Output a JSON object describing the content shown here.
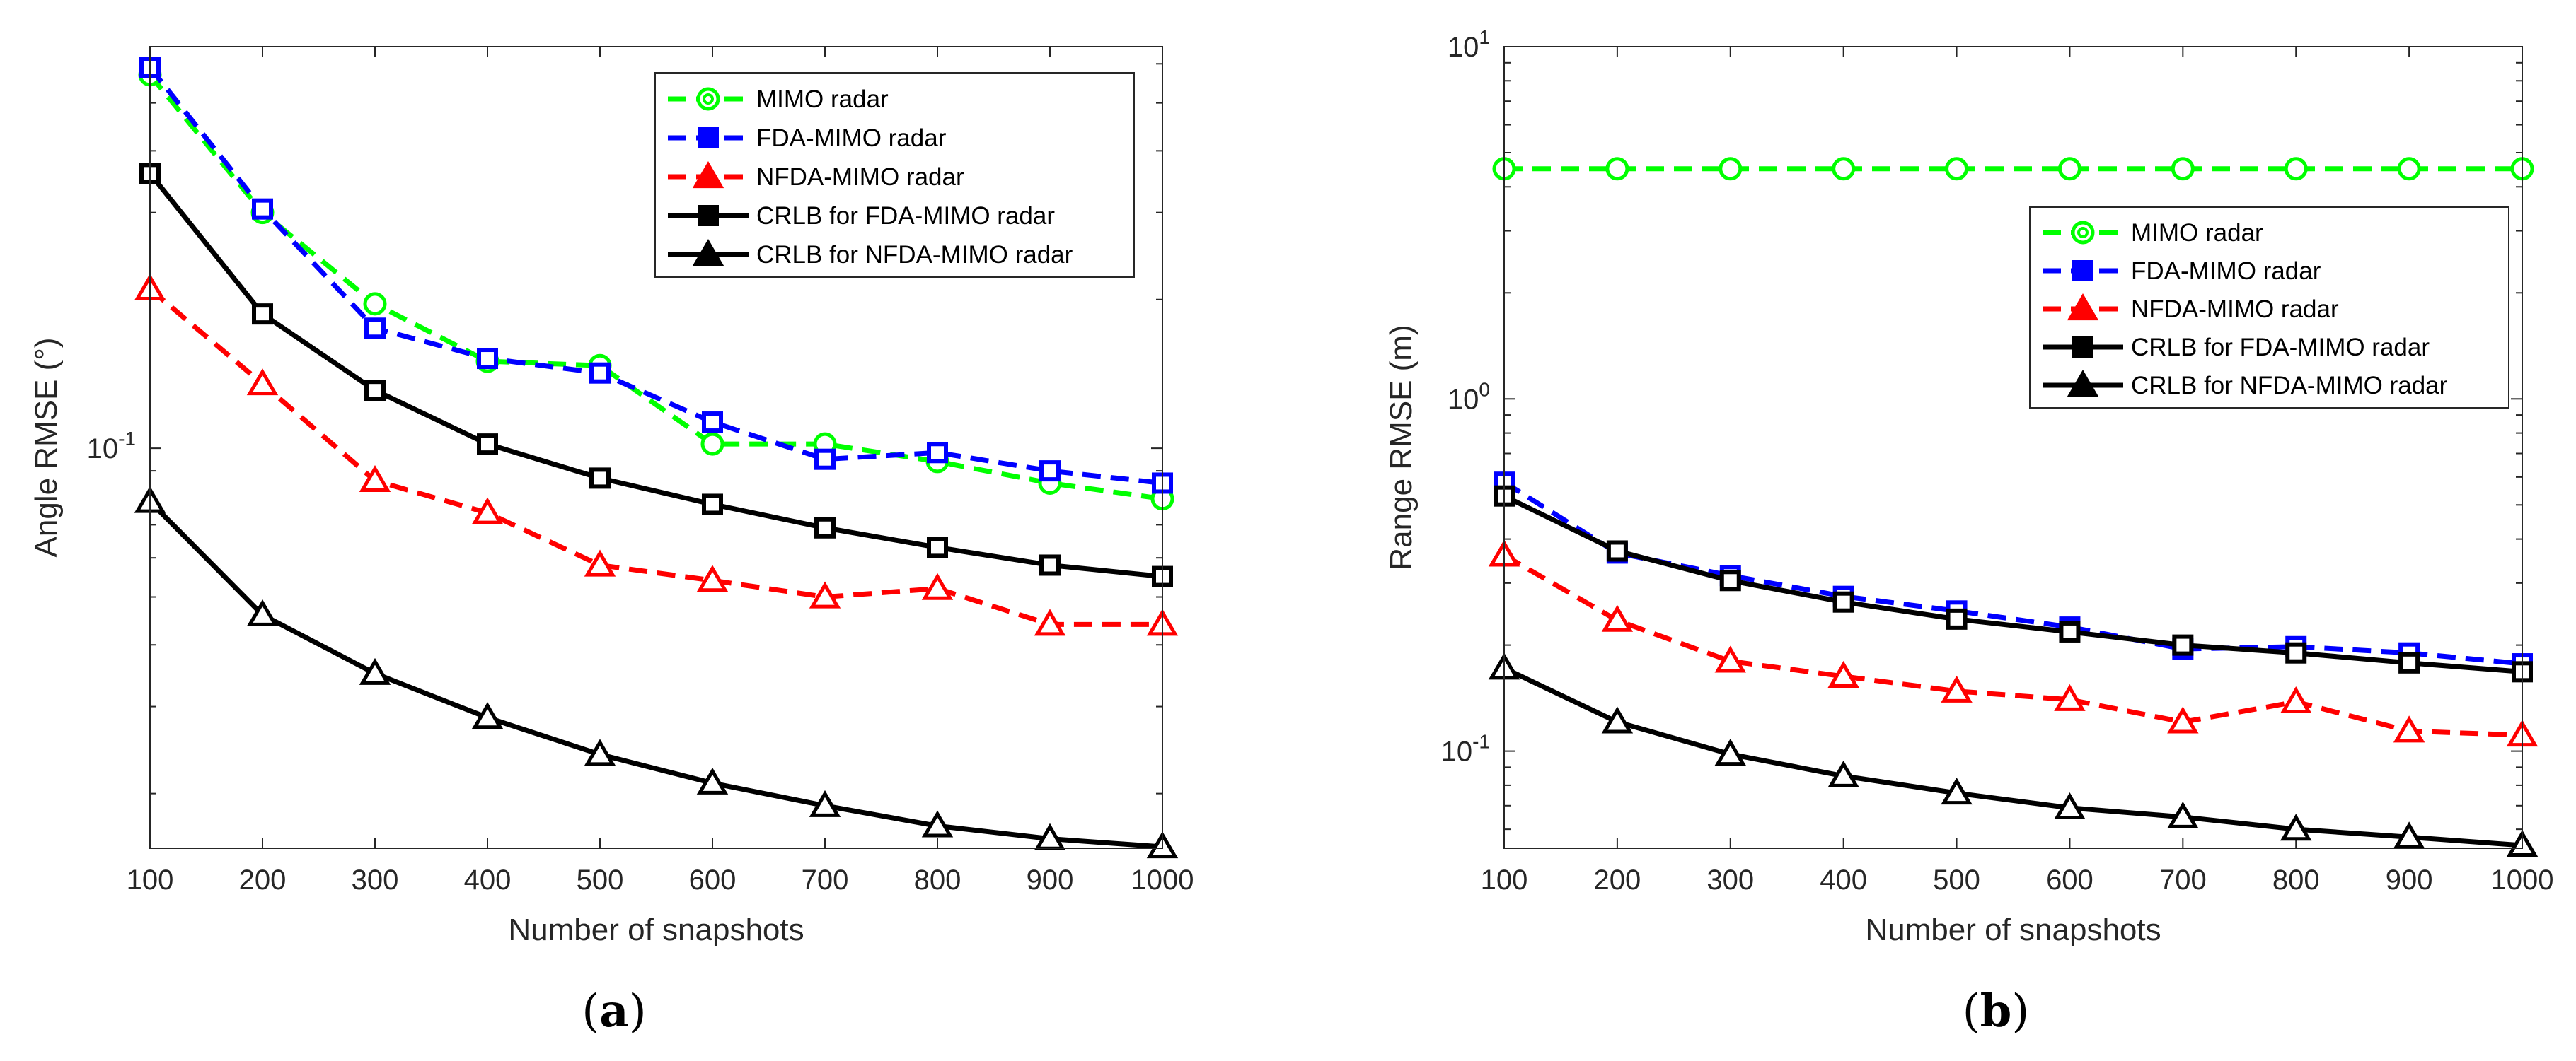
{
  "chart_data": [
    {
      "type": "line",
      "id": "a",
      "caption_open": "(",
      "caption_letter": "a",
      "caption_close": ")",
      "xlabel": "Number of snapshots",
      "ylabel": "Angle RMSE (°)",
      "yscale": "log",
      "ylim": [
        0.0155,
        0.65
      ],
      "xlim": [
        100,
        1000
      ],
      "x": [
        100,
        200,
        300,
        400,
        500,
        600,
        700,
        800,
        900,
        1000
      ],
      "xticks": [
        "100",
        "200",
        "300",
        "400",
        "500",
        "600",
        "700",
        "800",
        "900",
        "1000"
      ],
      "ytick_labels": [
        {
          "base": "10",
          "exp": "-1",
          "value": 0.1
        }
      ],
      "legend": "top-right",
      "series": [
        {
          "name": "MIMO radar",
          "color": "#00ff00",
          "dash": true,
          "marker": "circle",
          "values": [
            0.57,
            0.3,
            0.196,
            0.15,
            0.147,
            0.102,
            0.102,
            0.094,
            0.085,
            0.079
          ]
        },
        {
          "name": "FDA-MIMO radar",
          "color": "#0000ff",
          "dash": true,
          "marker": "square",
          "values": [
            0.59,
            0.305,
            0.175,
            0.152,
            0.142,
            0.113,
            0.095,
            0.098,
            0.09,
            0.085
          ]
        },
        {
          "name": "NFDA-MIMO radar",
          "color": "#ff0000",
          "dash": true,
          "marker": "triangle",
          "values": [
            0.21,
            0.135,
            0.086,
            0.074,
            0.058,
            0.054,
            0.05,
            0.052,
            0.044,
            0.044
          ]
        },
        {
          "name": "CRLB for FDA-MIMO radar",
          "color": "#000000",
          "dash": false,
          "marker": "square",
          "values": [
            0.36,
            0.187,
            0.131,
            0.102,
            0.087,
            0.077,
            0.069,
            0.063,
            0.058,
            0.055
          ]
        },
        {
          "name": "CRLB for NFDA-MIMO radar",
          "color": "#000000",
          "dash": false,
          "marker": "triangle",
          "values": [
            0.078,
            0.046,
            0.035,
            0.0285,
            0.024,
            0.021,
            0.0189,
            0.0172,
            0.0162,
            0.0156
          ]
        }
      ]
    },
    {
      "type": "line",
      "id": "b",
      "caption_open": "(",
      "caption_letter": "b",
      "caption_close": ")",
      "xlabel": "Number of snapshots",
      "ylabel": "Range RMSE (m)",
      "yscale": "log",
      "ylim": [
        0.053,
        10
      ],
      "xlim": [
        100,
        1000
      ],
      "x": [
        100,
        200,
        300,
        400,
        500,
        600,
        700,
        800,
        900,
        1000
      ],
      "xticks": [
        "100",
        "200",
        "300",
        "400",
        "500",
        "600",
        "700",
        "800",
        "900",
        "1000"
      ],
      "ytick_labels": [
        {
          "base": "10",
          "exp": "-1",
          "value": 0.1
        },
        {
          "base": "10",
          "exp": "0",
          "value": 1
        },
        {
          "base": "10",
          "exp": "1",
          "value": 10
        }
      ],
      "legend": "right",
      "series": [
        {
          "name": "MIMO radar",
          "color": "#00ff00",
          "dash": true,
          "marker": "circle",
          "values": [
            4.5,
            4.5,
            4.5,
            4.5,
            4.5,
            4.5,
            4.5,
            4.5,
            4.5,
            4.5
          ]
        },
        {
          "name": "FDA-MIMO radar",
          "color": "#0000ff",
          "dash": true,
          "marker": "square",
          "values": [
            0.58,
            0.365,
            0.315,
            0.275,
            0.25,
            0.225,
            0.195,
            0.198,
            0.19,
            0.177
          ]
        },
        {
          "name": "NFDA-MIMO radar",
          "color": "#ff0000",
          "dash": true,
          "marker": "triangle",
          "values": [
            0.36,
            0.235,
            0.18,
            0.163,
            0.148,
            0.14,
            0.121,
            0.138,
            0.114,
            0.111
          ]
        },
        {
          "name": "CRLB for FDA-MIMO radar",
          "color": "#000000",
          "dash": false,
          "marker": "square",
          "values": [
            0.53,
            0.37,
            0.305,
            0.265,
            0.237,
            0.218,
            0.2,
            0.19,
            0.178,
            0.168
          ]
        },
        {
          "name": "CRLB for NFDA-MIMO radar",
          "color": "#000000",
          "dash": false,
          "marker": "triangle",
          "values": [
            0.172,
            0.121,
            0.098,
            0.085,
            0.076,
            0.069,
            0.065,
            0.06,
            0.057,
            0.054
          ]
        }
      ]
    }
  ]
}
